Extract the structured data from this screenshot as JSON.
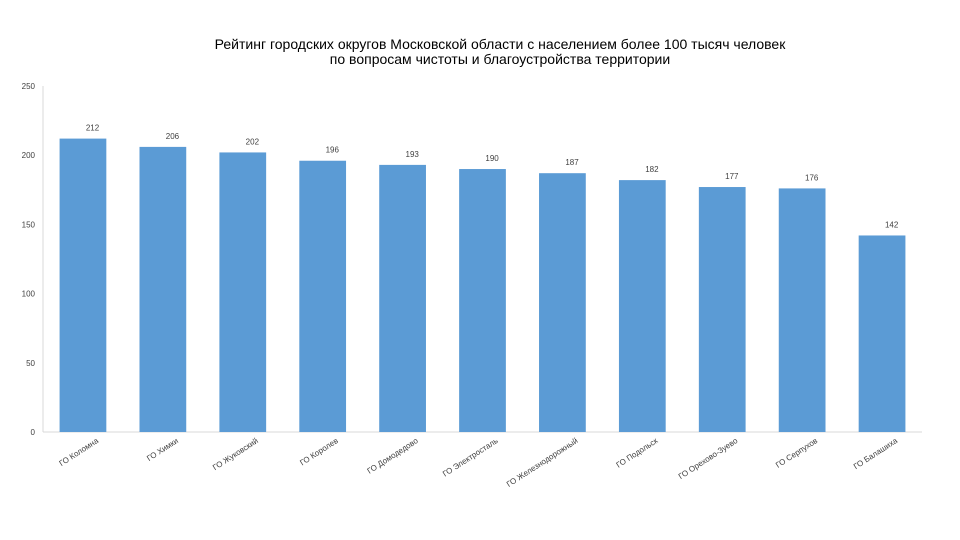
{
  "chart_data": {
    "type": "bar",
    "title": "Рейтинг городских округов Московской области с населением более 100 тысяч человек",
    "subtitle": "по вопросам чистоты и благоустройства территории",
    "categories": [
      "ГО Коломна",
      "ГО Химки",
      "ГО Жуковский",
      "ГО Королев",
      "ГО Домодедово",
      "ГО Электросталь",
      "ГО Железнодорожный",
      "ГО Подольск",
      "ГО Орехово-Зуево",
      "ГО Серпухов",
      "ГО Балашиха"
    ],
    "values": [
      212,
      206,
      202,
      196,
      193,
      190,
      187,
      182,
      177,
      176,
      142
    ],
    "data_labels": [
      "212",
      "206",
      "202",
      "196",
      "193",
      "190",
      "187",
      "182",
      "177",
      "176",
      "142"
    ],
    "ylim": [
      0,
      250
    ],
    "yticks": [
      0,
      50,
      100,
      150,
      200,
      250
    ],
    "ytick_labels": [
      "0",
      "50",
      "100",
      "150",
      "200",
      "250"
    ],
    "xlabel": "",
    "ylabel": "",
    "grid": false,
    "legend": "none",
    "bar_color": "#5b9bd5"
  }
}
